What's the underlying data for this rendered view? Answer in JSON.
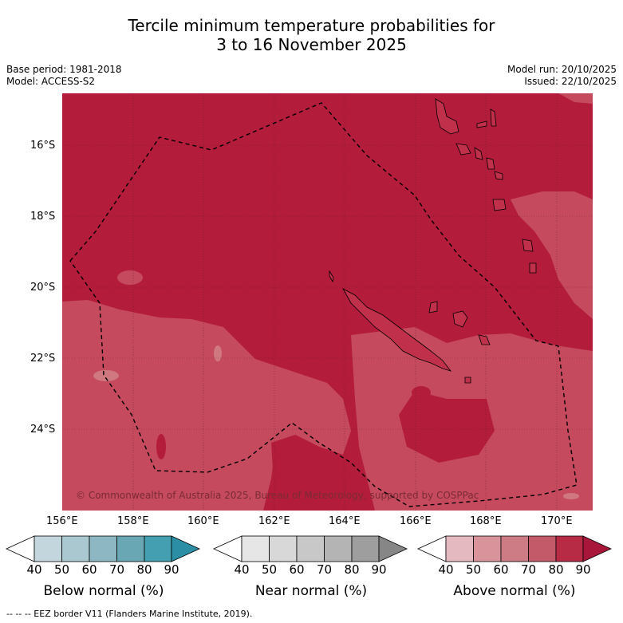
{
  "title_line1": "Tercile minimum temperature probabilities for",
  "title_line2": "3 to 16 November 2025",
  "meta": {
    "base_period": "Base period: 1981-2018",
    "model": "Model: ACCESS-S2",
    "model_run": "Model run: 20/10/2025",
    "issued": "Issued: 22/10/2025"
  },
  "map": {
    "lat_labels": [
      "16°S",
      "18°S",
      "20°S",
      "22°S",
      "24°S"
    ],
    "lon_labels": [
      "156°E",
      "158°E",
      "160°E",
      "162°E",
      "164°E",
      "166°E",
      "168°E",
      "170°E"
    ],
    "copyright": "© Commonwealth of Australia 2025, Bureau of Meteorology, supported by COSPPac",
    "colors": {
      "above_80_90": "#b31c3b",
      "above_70_80": "#c54a5e",
      "above_60_70": "#d07880"
    }
  },
  "colorbars": [
    {
      "title": "Below normal (%)",
      "ticks": [
        "40",
        "50",
        "60",
        "70",
        "80",
        "90"
      ],
      "colors": [
        "#c4d6dd",
        "#a9c8cf",
        "#8db8c3",
        "#6aa7b5",
        "#449fb0",
        "#2b8ea4"
      ]
    },
    {
      "title": "Near normal (%)",
      "ticks": [
        "40",
        "50",
        "60",
        "70",
        "80",
        "90"
      ],
      "colors": [
        "#e6e6e6",
        "#d8d8d8",
        "#c8c8c8",
        "#b4b4b4",
        "#9e9e9e",
        "#868686"
      ]
    },
    {
      "title": "Above normal (%)",
      "ticks": [
        "40",
        "50",
        "60",
        "70",
        "80",
        "90"
      ],
      "colors": [
        "#e5b9c0",
        "#d9939b",
        "#cd7b84",
        "#c35a69",
        "#b72b45",
        "#a8163a"
      ]
    }
  ],
  "footnote": "--  --  -- EEZ border V11 (Flanders Marine Institute, 2019)."
}
